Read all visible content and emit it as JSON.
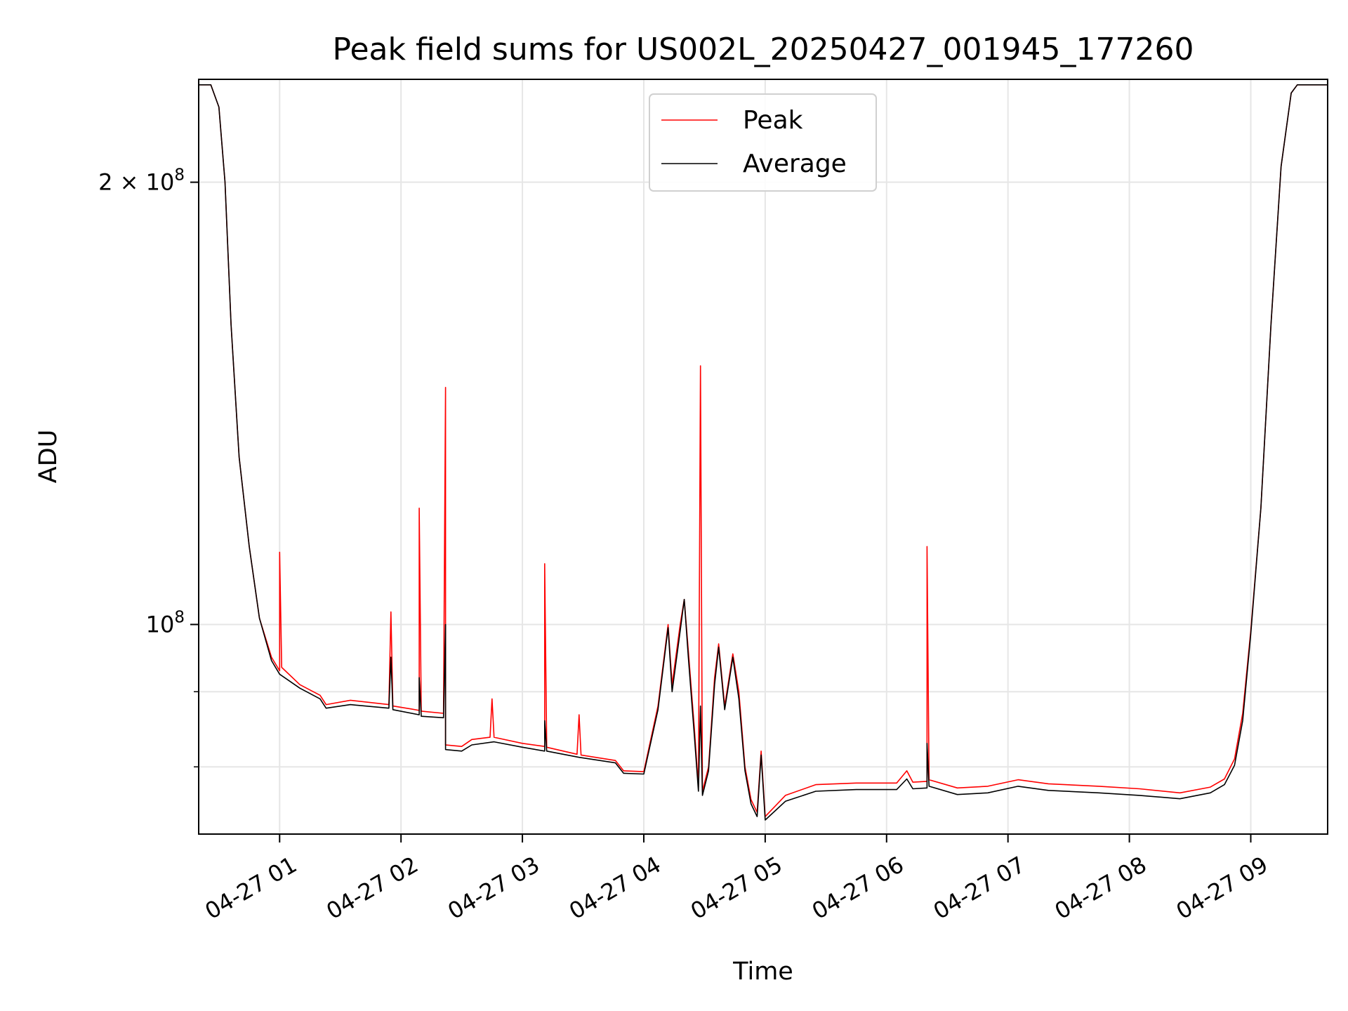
{
  "chart_data": {
    "type": "line",
    "title": "Peak field sums for US002L_20250427_001945_177260",
    "xlabel": "Time",
    "ylabel": "ADU",
    "yscale": "log",
    "grid": true,
    "legend_position": "upper-center",
    "xlim": [
      "2025-04-27 00:20",
      "2025-04-27 09:38"
    ],
    "ylim": [
      72000000,
      235000000
    ],
    "x_ticks": [
      {
        "t": "2025-04-27 01:00",
        "label": "04-27 01"
      },
      {
        "t": "2025-04-27 02:00",
        "label": "04-27 02"
      },
      {
        "t": "2025-04-27 03:00",
        "label": "04-27 03"
      },
      {
        "t": "2025-04-27 04:00",
        "label": "04-27 04"
      },
      {
        "t": "2025-04-27 05:00",
        "label": "04-27 05"
      },
      {
        "t": "2025-04-27 06:00",
        "label": "04-27 06"
      },
      {
        "t": "2025-04-27 07:00",
        "label": "04-27 07"
      },
      {
        "t": "2025-04-27 08:00",
        "label": "04-27 08"
      },
      {
        "t": "2025-04-27 09:00",
        "label": "04-27 09"
      }
    ],
    "y_ticks_major": [
      {
        "value": 100000000,
        "base": "10",
        "exp": "8",
        "prefix": ""
      },
      {
        "value": 200000000,
        "base": "10",
        "exp": "8",
        "prefix": "2 × "
      }
    ],
    "y_ticks_minor": [
      80000000,
      90000000
    ],
    "series": [
      {
        "name": "Peak",
        "color": "#ff0000",
        "points": [
          [
            "2025-04-27 00:20",
            233000000
          ],
          [
            "2025-04-27 00:26",
            233000000
          ],
          [
            "2025-04-27 00:30",
            225000000
          ],
          [
            "2025-04-27 00:33",
            200000000
          ],
          [
            "2025-04-27 00:36",
            160000000
          ],
          [
            "2025-04-27 00:40",
            130000000
          ],
          [
            "2025-04-27 00:45",
            113000000
          ],
          [
            "2025-04-27 00:50",
            101000000
          ],
          [
            "2025-04-27 00:56",
            95000000
          ],
          [
            "2025-04-27 01:00",
            93000000
          ],
          [
            "2025-04-27 01:00",
            112000000
          ],
          [
            "2025-04-27 01:01",
            93500000
          ],
          [
            "2025-04-27 01:10",
            91000000
          ],
          [
            "2025-04-27 01:20",
            89500000
          ],
          [
            "2025-04-27 01:23",
            88200000
          ],
          [
            "2025-04-27 01:35",
            88800000
          ],
          [
            "2025-04-27 01:54",
            88200000
          ],
          [
            "2025-04-27 01:55",
            102000000
          ],
          [
            "2025-04-27 01:56",
            88000000
          ],
          [
            "2025-04-27 02:05",
            87600000
          ],
          [
            "2025-04-27 02:09",
            87400000
          ],
          [
            "2025-04-27 02:09",
            120000000
          ],
          [
            "2025-04-27 02:10",
            87300000
          ],
          [
            "2025-04-27 02:21",
            87000000
          ],
          [
            "2025-04-27 02:22",
            145000000
          ],
          [
            "2025-04-27 02:22",
            82800000
          ],
          [
            "2025-04-27 02:30",
            82600000
          ],
          [
            "2025-04-27 02:35",
            83500000
          ],
          [
            "2025-04-27 02:44",
            83800000
          ],
          [
            "2025-04-27 02:45",
            89000000
          ],
          [
            "2025-04-27 02:46",
            83800000
          ],
          [
            "2025-04-27 03:00",
            83000000
          ],
          [
            "2025-04-27 03:11",
            82600000
          ],
          [
            "2025-04-27 03:11",
            110000000
          ],
          [
            "2025-04-27 03:12",
            82500000
          ],
          [
            "2025-04-27 03:27",
            81600000
          ],
          [
            "2025-04-27 03:28",
            86800000
          ],
          [
            "2025-04-27 03:29",
            81500000
          ],
          [
            "2025-04-27 03:46",
            80800000
          ],
          [
            "2025-04-27 03:50",
            79500000
          ],
          [
            "2025-04-27 04:00",
            79400000
          ],
          [
            "2025-04-27 04:07",
            88000000
          ],
          [
            "2025-04-27 04:12",
            100000000
          ],
          [
            "2025-04-27 04:14",
            91000000
          ],
          [
            "2025-04-27 04:18",
            100000000
          ],
          [
            "2025-04-27 04:20",
            104000000
          ],
          [
            "2025-04-27 04:22",
            96000000
          ],
          [
            "2025-04-27 04:25",
            85000000
          ],
          [
            "2025-04-27 04:27",
            77500000
          ],
          [
            "2025-04-27 04:28",
            150000000
          ],
          [
            "2025-04-27 04:29",
            77000000
          ],
          [
            "2025-04-27 04:32",
            80000000
          ],
          [
            "2025-04-27 04:35",
            92000000
          ],
          [
            "2025-04-27 04:37",
            97000000
          ],
          [
            "2025-04-27 04:40",
            88000000
          ],
          [
            "2025-04-27 04:44",
            95500000
          ],
          [
            "2025-04-27 04:47",
            90000000
          ],
          [
            "2025-04-27 04:50",
            80000000
          ],
          [
            "2025-04-27 04:53",
            76000000
          ],
          [
            "2025-04-27 04:56",
            74500000
          ],
          [
            "2025-04-27 04:58",
            82000000
          ],
          [
            "2025-04-27 05:00",
            74000000
          ],
          [
            "2025-04-27 05:10",
            76500000
          ],
          [
            "2025-04-27 05:25",
            77800000
          ],
          [
            "2025-04-27 05:45",
            78000000
          ],
          [
            "2025-04-27 06:05",
            78000000
          ],
          [
            "2025-04-27 06:10",
            79500000
          ],
          [
            "2025-04-27 06:13",
            78100000
          ],
          [
            "2025-04-27 06:20",
            78200000
          ],
          [
            "2025-04-27 06:20",
            113000000
          ],
          [
            "2025-04-27 06:21",
            78400000
          ],
          [
            "2025-04-27 06:35",
            77400000
          ],
          [
            "2025-04-27 06:50",
            77600000
          ],
          [
            "2025-04-27 07:05",
            78400000
          ],
          [
            "2025-04-27 07:20",
            77900000
          ],
          [
            "2025-04-27 07:45",
            77600000
          ],
          [
            "2025-04-27 08:05",
            77300000
          ],
          [
            "2025-04-27 08:25",
            76800000
          ],
          [
            "2025-04-27 08:40",
            77500000
          ],
          [
            "2025-04-27 08:47",
            78500000
          ],
          [
            "2025-04-27 08:52",
            81000000
          ],
          [
            "2025-04-27 08:56",
            87000000
          ],
          [
            "2025-04-27 09:00",
            99000000
          ],
          [
            "2025-04-27 09:05",
            120000000
          ],
          [
            "2025-04-27 09:10",
            160000000
          ],
          [
            "2025-04-27 09:15",
            205000000
          ],
          [
            "2025-04-27 09:20",
            230000000
          ],
          [
            "2025-04-27 09:23",
            233000000
          ],
          [
            "2025-04-27 09:38",
            233000000
          ]
        ]
      },
      {
        "name": "Average",
        "color": "#000000",
        "points": [
          [
            "2025-04-27 00:20",
            233000000
          ],
          [
            "2025-04-27 00:26",
            233000000
          ],
          [
            "2025-04-27 00:30",
            225000000
          ],
          [
            "2025-04-27 00:33",
            200000000
          ],
          [
            "2025-04-27 00:36",
            160000000
          ],
          [
            "2025-04-27 00:40",
            130000000
          ],
          [
            "2025-04-27 00:45",
            113000000
          ],
          [
            "2025-04-27 00:50",
            101000000
          ],
          [
            "2025-04-27 00:56",
            94500000
          ],
          [
            "2025-04-27 01:00",
            92500000
          ],
          [
            "2025-04-27 01:10",
            90500000
          ],
          [
            "2025-04-27 01:20",
            89000000
          ],
          [
            "2025-04-27 01:23",
            87700000
          ],
          [
            "2025-04-27 01:35",
            88200000
          ],
          [
            "2025-04-27 01:54",
            87700000
          ],
          [
            "2025-04-27 01:55",
            95000000
          ],
          [
            "2025-04-27 01:56",
            87500000
          ],
          [
            "2025-04-27 02:09",
            86800000
          ],
          [
            "2025-04-27 02:09",
            92000000
          ],
          [
            "2025-04-27 02:10",
            86600000
          ],
          [
            "2025-04-27 02:21",
            86400000
          ],
          [
            "2025-04-27 02:22",
            100000000
          ],
          [
            "2025-04-27 02:22",
            82200000
          ],
          [
            "2025-04-27 02:30",
            82000000
          ],
          [
            "2025-04-27 02:35",
            82800000
          ],
          [
            "2025-04-27 02:46",
            83200000
          ],
          [
            "2025-04-27 03:00",
            82500000
          ],
          [
            "2025-04-27 03:11",
            82000000
          ],
          [
            "2025-04-27 03:11",
            86000000
          ],
          [
            "2025-04-27 03:12",
            82000000
          ],
          [
            "2025-04-27 03:28",
            81200000
          ],
          [
            "2025-04-27 03:46",
            80500000
          ],
          [
            "2025-04-27 03:50",
            79200000
          ],
          [
            "2025-04-27 04:00",
            79100000
          ],
          [
            "2025-04-27 04:07",
            87500000
          ],
          [
            "2025-04-27 04:12",
            99500000
          ],
          [
            "2025-04-27 04:14",
            90000000
          ],
          [
            "2025-04-27 04:18",
            99000000
          ],
          [
            "2025-04-27 04:20",
            104000000
          ],
          [
            "2025-04-27 04:22",
            95000000
          ],
          [
            "2025-04-27 04:25",
            84000000
          ],
          [
            "2025-04-27 04:27",
            77000000
          ],
          [
            "2025-04-27 04:28",
            88000000
          ],
          [
            "2025-04-27 04:29",
            76500000
          ],
          [
            "2025-04-27 04:32",
            79500000
          ],
          [
            "2025-04-27 04:35",
            91000000
          ],
          [
            "2025-04-27 04:37",
            96500000
          ],
          [
            "2025-04-27 04:40",
            87500000
          ],
          [
            "2025-04-27 04:44",
            95000000
          ],
          [
            "2025-04-27 04:47",
            89000000
          ],
          [
            "2025-04-27 04:50",
            79500000
          ],
          [
            "2025-04-27 04:53",
            75500000
          ],
          [
            "2025-04-27 04:56",
            74000000
          ],
          [
            "2025-04-27 04:58",
            81500000
          ],
          [
            "2025-04-27 05:00",
            73600000
          ],
          [
            "2025-04-27 05:10",
            75800000
          ],
          [
            "2025-04-27 05:25",
            77000000
          ],
          [
            "2025-04-27 05:45",
            77200000
          ],
          [
            "2025-04-27 06:05",
            77200000
          ],
          [
            "2025-04-27 06:10",
            78500000
          ],
          [
            "2025-04-27 06:13",
            77300000
          ],
          [
            "2025-04-27 06:20",
            77400000
          ],
          [
            "2025-04-27 06:20",
            83000000
          ],
          [
            "2025-04-27 06:21",
            77600000
          ],
          [
            "2025-04-27 06:35",
            76600000
          ],
          [
            "2025-04-27 06:50",
            76800000
          ],
          [
            "2025-04-27 07:05",
            77600000
          ],
          [
            "2025-04-27 07:20",
            77100000
          ],
          [
            "2025-04-27 07:45",
            76800000
          ],
          [
            "2025-04-27 08:05",
            76500000
          ],
          [
            "2025-04-27 08:25",
            76100000
          ],
          [
            "2025-04-27 08:40",
            76800000
          ],
          [
            "2025-04-27 08:47",
            77800000
          ],
          [
            "2025-04-27 08:52",
            80200000
          ],
          [
            "2025-04-27 08:56",
            86000000
          ],
          [
            "2025-04-27 09:00",
            98500000
          ],
          [
            "2025-04-27 09:05",
            120000000
          ],
          [
            "2025-04-27 09:10",
            160000000
          ],
          [
            "2025-04-27 09:15",
            205000000
          ],
          [
            "2025-04-27 09:20",
            230000000
          ],
          [
            "2025-04-27 09:23",
            233000000
          ],
          [
            "2025-04-27 09:38",
            233000000
          ]
        ]
      }
    ]
  }
}
